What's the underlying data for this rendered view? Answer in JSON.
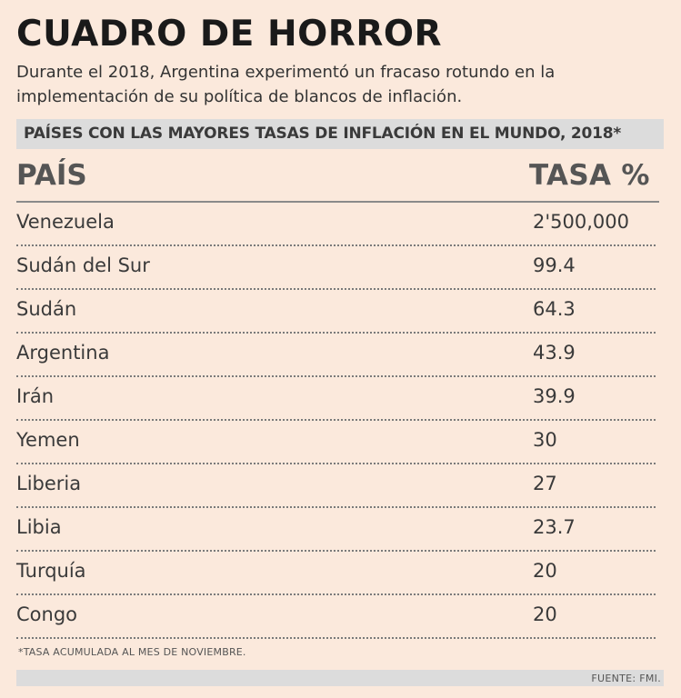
{
  "header": {
    "title": "CUADRO DE HORROR",
    "subtitle": "Durante el 2018, Argentina experimentó un fracaso rotundo en la implementación de su política de blancos de inflación.",
    "band": "PAÍSES CON LAS MAYORES TASAS DE INFLACIÓN EN EL MUNDO, 2018*"
  },
  "chart_data": {
    "type": "table",
    "title": "PAÍSES CON LAS MAYORES TASAS DE INFLACIÓN EN EL MUNDO, 2018*",
    "columns": [
      "PAÍS",
      "TASA %"
    ],
    "rows": [
      {
        "country": "Venezuela",
        "rate": "2'500,000"
      },
      {
        "country": "Sudán del Sur",
        "rate": "99.4"
      },
      {
        "country": "Sudán",
        "rate": "64.3"
      },
      {
        "country": "Argentina",
        "rate": "43.9"
      },
      {
        "country": "Irán",
        "rate": "39.9"
      },
      {
        "country": "Yemen",
        "rate": "30"
      },
      {
        "country": "Liberia",
        "rate": "27"
      },
      {
        "country": "Libia",
        "rate": "23.7"
      },
      {
        "country": "Turquía",
        "rate": "20"
      },
      {
        "country": "Congo",
        "rate": "20"
      }
    ]
  },
  "footer": {
    "footnote": "*TASA ACUMULADA AL MES DE NOVIEMBRE.",
    "source": "FUENTE: FMI."
  },
  "colors": {
    "background": "#fbe9dc",
    "band": "#dcdcdc",
    "text": "#333333"
  }
}
